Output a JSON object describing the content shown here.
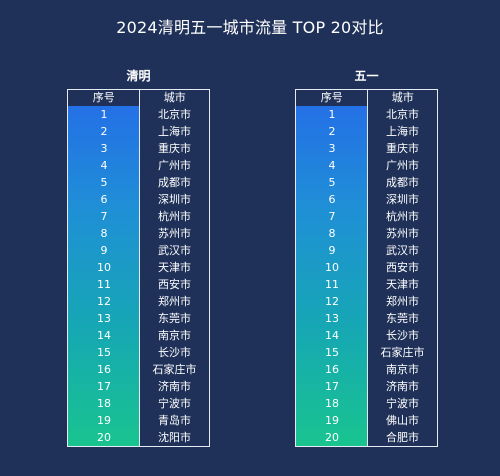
{
  "title": "2024清明五一城市流量 TOP 20对比",
  "headers": {
    "rank": "序号",
    "city": "城市"
  },
  "tables": [
    {
      "name": "清明",
      "rows": [
        {
          "rank": "1",
          "city": "北京市"
        },
        {
          "rank": "2",
          "city": "上海市"
        },
        {
          "rank": "3",
          "city": "重庆市"
        },
        {
          "rank": "4",
          "city": "广州市"
        },
        {
          "rank": "5",
          "city": "成都市"
        },
        {
          "rank": "6",
          "city": "深圳市"
        },
        {
          "rank": "7",
          "city": "杭州市"
        },
        {
          "rank": "8",
          "city": "苏州市"
        },
        {
          "rank": "9",
          "city": "武汉市"
        },
        {
          "rank": "10",
          "city": "天津市"
        },
        {
          "rank": "11",
          "city": "西安市"
        },
        {
          "rank": "12",
          "city": "郑州市"
        },
        {
          "rank": "13",
          "city": "东莞市"
        },
        {
          "rank": "14",
          "city": "南京市"
        },
        {
          "rank": "15",
          "city": "长沙市"
        },
        {
          "rank": "16",
          "city": "石家庄市"
        },
        {
          "rank": "17",
          "city": "济南市"
        },
        {
          "rank": "18",
          "city": "宁波市"
        },
        {
          "rank": "19",
          "city": "青岛市"
        },
        {
          "rank": "20",
          "city": "沈阳市"
        }
      ]
    },
    {
      "name": "五一",
      "rows": [
        {
          "rank": "1",
          "city": "北京市"
        },
        {
          "rank": "2",
          "city": "上海市"
        },
        {
          "rank": "3",
          "city": "重庆市"
        },
        {
          "rank": "4",
          "city": "广州市"
        },
        {
          "rank": "5",
          "city": "成都市"
        },
        {
          "rank": "6",
          "city": "深圳市"
        },
        {
          "rank": "7",
          "city": "杭州市"
        },
        {
          "rank": "8",
          "city": "苏州市"
        },
        {
          "rank": "9",
          "city": "武汉市"
        },
        {
          "rank": "10",
          "city": "西安市"
        },
        {
          "rank": "11",
          "city": "天津市"
        },
        {
          "rank": "12",
          "city": "郑州市"
        },
        {
          "rank": "13",
          "city": "东莞市"
        },
        {
          "rank": "14",
          "city": "长沙市"
        },
        {
          "rank": "15",
          "city": "石家庄市"
        },
        {
          "rank": "16",
          "city": "南京市"
        },
        {
          "rank": "17",
          "city": "济南市"
        },
        {
          "rank": "18",
          "city": "宁波市"
        },
        {
          "rank": "19",
          "city": "佛山市"
        },
        {
          "rank": "20",
          "city": "合肥市"
        }
      ]
    }
  ],
  "colors": {
    "background": "#1f3158",
    "gradient_top": "#2470e6",
    "gradient_bottom": "#19c48f",
    "border": "#e6eaf2"
  }
}
